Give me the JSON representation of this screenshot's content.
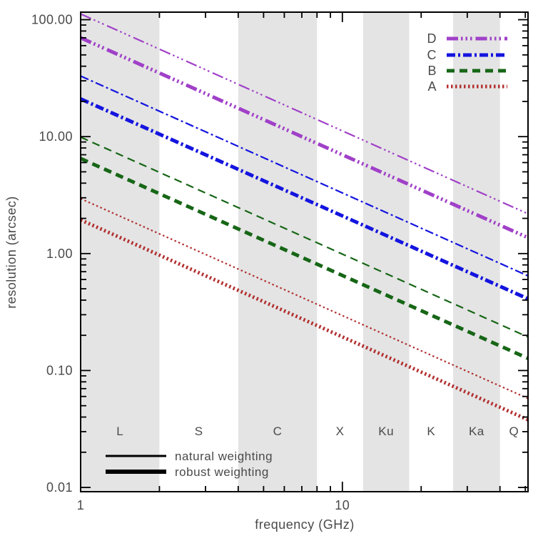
{
  "chart_data": {
    "type": "line",
    "title": "",
    "xlabel": "frequency (GHz)",
    "ylabel": "resolution (arcsec)",
    "x_scale": "log",
    "y_scale": "log",
    "xlim": [
      1,
      51.2
    ],
    "ylim": [
      0.0092,
      116
    ],
    "grid": false,
    "x_major_ticks": [
      1,
      10
    ],
    "x_major_tick_labels": [
      "1",
      "10"
    ],
    "x_minor_ticks": [
      2,
      3,
      4,
      5,
      6,
      7,
      8,
      9,
      20,
      30,
      40,
      50
    ],
    "y_major_ticks": [
      100,
      10,
      1,
      0.1,
      0.01
    ],
    "y_major_tick_labels": [
      "100.00",
      "10.00",
      "1.00",
      "0.10",
      "0.01"
    ],
    "relation": "resolution_arcsec = arcsec_at_1GHz / frequency_GHz (straight lines of slope -1 in log-log)",
    "series": [
      {
        "name": "D natural",
        "config": "D",
        "weighting": "natural",
        "color": "#A040C8",
        "linestyle": "dash-dot-dot-dot",
        "thickness": "thin",
        "arcsec_at_1GHz": 112,
        "arcsec_at_50GHz": 2.2
      },
      {
        "name": "D robust",
        "config": "D",
        "weighting": "robust",
        "color": "#A040C8",
        "linestyle": "dash-dot-dot-dot",
        "thickness": "thick",
        "arcsec_at_1GHz": 70,
        "arcsec_at_50GHz": 1.4
      },
      {
        "name": "C natural",
        "config": "C",
        "weighting": "natural",
        "color": "#1414DF",
        "linestyle": "dash-dot",
        "thickness": "thin",
        "arcsec_at_1GHz": 33,
        "arcsec_at_50GHz": 0.66
      },
      {
        "name": "C robust",
        "config": "C",
        "weighting": "robust",
        "color": "#1414DF",
        "linestyle": "dash-dot",
        "thickness": "thick",
        "arcsec_at_1GHz": 21,
        "arcsec_at_50GHz": 0.42
      },
      {
        "name": "B natural",
        "config": "B",
        "weighting": "natural",
        "color": "#166616",
        "linestyle": "dashed",
        "thickness": "thin",
        "arcsec_at_1GHz": 9.9,
        "arcsec_at_50GHz": 0.2
      },
      {
        "name": "B robust",
        "config": "B",
        "weighting": "robust",
        "color": "#166616",
        "linestyle": "dashed",
        "thickness": "thick",
        "arcsec_at_1GHz": 6.5,
        "arcsec_at_50GHz": 0.13
      },
      {
        "name": "A natural",
        "config": "A",
        "weighting": "natural",
        "color": "#B23030",
        "linestyle": "dotted",
        "thickness": "thin",
        "arcsec_at_1GHz": 2.95,
        "arcsec_at_50GHz": 0.059
      },
      {
        "name": "A robust",
        "config": "A",
        "weighting": "robust",
        "color": "#B23030",
        "linestyle": "dotted",
        "thickness": "thick",
        "arcsec_at_1GHz": 1.94,
        "arcsec_at_50GHz": 0.039
      }
    ],
    "frequency_bands": [
      {
        "label": "L",
        "f_min_GHz": 1,
        "f_max_GHz": 2,
        "shaded": true
      },
      {
        "label": "S",
        "f_min_GHz": 2,
        "f_max_GHz": 4,
        "shaded": false
      },
      {
        "label": "C",
        "f_min_GHz": 4,
        "f_max_GHz": 8,
        "shaded": true
      },
      {
        "label": "X",
        "f_min_GHz": 8,
        "f_max_GHz": 12,
        "shaded": false
      },
      {
        "label": "Ku",
        "f_min_GHz": 12,
        "f_max_GHz": 18,
        "shaded": true
      },
      {
        "label": "K",
        "f_min_GHz": 18,
        "f_max_GHz": 26.5,
        "shaded": false
      },
      {
        "label": "Ka",
        "f_min_GHz": 26.5,
        "f_max_GHz": 40,
        "shaded": true
      },
      {
        "label": "Q",
        "f_min_GHz": 40,
        "f_max_GHz": 51.2,
        "shaded": false
      }
    ],
    "band_shade_color": "#E4E4E4",
    "config_legend": [
      {
        "label": "D",
        "color": "#A040C8",
        "linestyle": "dash-dot-dot-dot"
      },
      {
        "label": "C",
        "color": "#1414DF",
        "linestyle": "dash-dot"
      },
      {
        "label": "B",
        "color": "#166616",
        "linestyle": "dashed"
      },
      {
        "label": "A",
        "color": "#B23030",
        "linestyle": "dotted"
      }
    ],
    "weighting_legend": [
      {
        "label": "natural weighting",
        "thickness": "thin"
      },
      {
        "label": "robust weighting",
        "thickness": "thick"
      }
    ],
    "legend_position": "top-right"
  }
}
